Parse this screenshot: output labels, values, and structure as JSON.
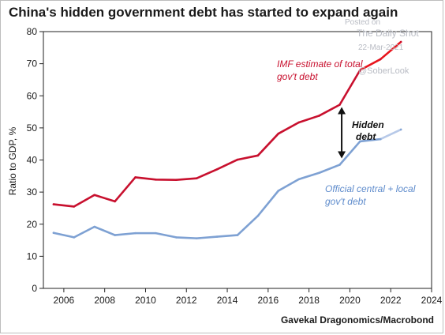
{
  "title": "China's hidden government debt has started to expand again",
  "source": "Gavekal Dragonomics/Macrobond",
  "watermark": {
    "line1": "Posted on",
    "line2": "The Daily Shot",
    "line3": "22-Mar-2021",
    "line4": "@SoberLook"
  },
  "colors": {
    "imf": "#c8102e",
    "imf_highlight": "#e8141c",
    "official": "#7ea1d3",
    "official_highlight": "#b7c9e8",
    "arrow": "#111111"
  },
  "chart_data": {
    "type": "line",
    "ylabel": "Ratio to GDP, %",
    "xlabel": "",
    "xlim": [
      2005,
      2024
    ],
    "ylim": [
      0,
      80
    ],
    "x_ticks": [
      "2006",
      "2008",
      "2010",
      "2012",
      "2014",
      "2016",
      "2018",
      "2020",
      "2022",
      "2024"
    ],
    "y_ticks": [
      "0",
      "10",
      "20",
      "30",
      "40",
      "50",
      "60",
      "70",
      "80"
    ],
    "grid": false,
    "series": [
      {
        "name": "IMF estimate of total gov't debt",
        "x": [
          2005.5,
          2006.5,
          2007.5,
          2008.5,
          2009.5,
          2010.5,
          2011.5,
          2012.5,
          2013.5,
          2014.5,
          2015.5,
          2016.5,
          2017.5,
          2018.5,
          2019.5,
          2020.5,
          2021.5,
          2022.5
        ],
        "y": [
          26.2,
          25.5,
          29.1,
          27.1,
          34.6,
          33.9,
          33.8,
          34.3,
          37.1,
          40.1,
          41.4,
          48.2,
          51.7,
          53.8,
          57.2,
          68.0,
          71.4,
          76.8
        ],
        "highlight_from_index": 15
      },
      {
        "name": "Official central + local gov't debt",
        "x": [
          2005.5,
          2006.5,
          2007.5,
          2008.5,
          2009.5,
          2010.5,
          2011.5,
          2012.5,
          2013.5,
          2014.5,
          2015.5,
          2016.5,
          2017.5,
          2018.5,
          2019.5,
          2020.5,
          2021.5,
          2022.5
        ],
        "y": [
          17.3,
          15.9,
          19.2,
          16.6,
          17.2,
          17.2,
          15.9,
          15.6,
          16.1,
          16.6,
          22.6,
          30.4,
          34.0,
          36.0,
          38.5,
          45.8,
          46.5,
          49.5
        ],
        "highlight_from_index": 16
      }
    ],
    "annotations": {
      "imf_label_line1": "IMF estimate of total",
      "imf_label_line2": "gov't debt",
      "official_label_line1": "Official central + local",
      "official_label_line2": "gov't debt",
      "hidden_label_line1": "Hidden",
      "hidden_label_line2": "debt",
      "arrow_x": 2019.6,
      "arrow_y_top": 56.5,
      "arrow_y_bottom": 40.5
    }
  }
}
